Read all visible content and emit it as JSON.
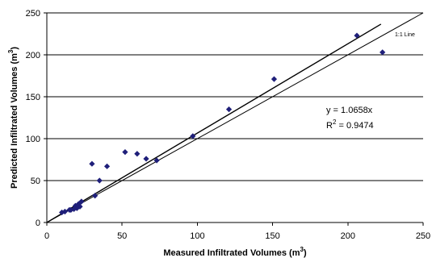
{
  "chart_data": {
    "type": "scatter",
    "xlabel": "Measured Infiltrated Volumes (m",
    "xlabel_sup": "3",
    "xlabel_end": ")",
    "ylabel": "Predicted Infiltrated Volumes (m",
    "ylabel_sup": "3",
    "ylabel_end": ")",
    "xlim": [
      0,
      250
    ],
    "ylim": [
      0,
      250
    ],
    "xticks": [
      "0",
      "50",
      "100",
      "150",
      "200",
      "250"
    ],
    "yticks": [
      "0",
      "50",
      "100",
      "150",
      "200",
      "250"
    ],
    "grid": "horizontal",
    "colors": {
      "points": "#1f1f7a",
      "lines": "#000000",
      "grid": "#000000"
    },
    "points": [
      [
        10,
        12
      ],
      [
        12,
        13
      ],
      [
        15,
        15
      ],
      [
        16,
        15
      ],
      [
        18,
        16
      ],
      [
        19,
        20
      ],
      [
        20,
        17
      ],
      [
        21,
        22
      ],
      [
        22,
        19
      ],
      [
        23,
        25
      ],
      [
        30,
        70
      ],
      [
        32,
        32
      ],
      [
        35,
        50
      ],
      [
        40,
        67
      ],
      [
        52,
        84
      ],
      [
        60,
        82
      ],
      [
        66,
        76
      ],
      [
        73,
        74
      ],
      [
        97,
        103
      ],
      [
        121,
        135
      ],
      [
        151,
        171
      ],
      [
        206,
        223
      ],
      [
        223,
        203
      ]
    ],
    "fit_line": {
      "slope": 1.0658,
      "x_end": 222
    },
    "one_to_one": {
      "x_end": 250
    },
    "one_to_one_label": "1:1 Line",
    "equation": "y = 1.0658x",
    "r2_prefix": "R",
    "r2_sup": "2",
    "r2_value": " = 0.9474"
  }
}
